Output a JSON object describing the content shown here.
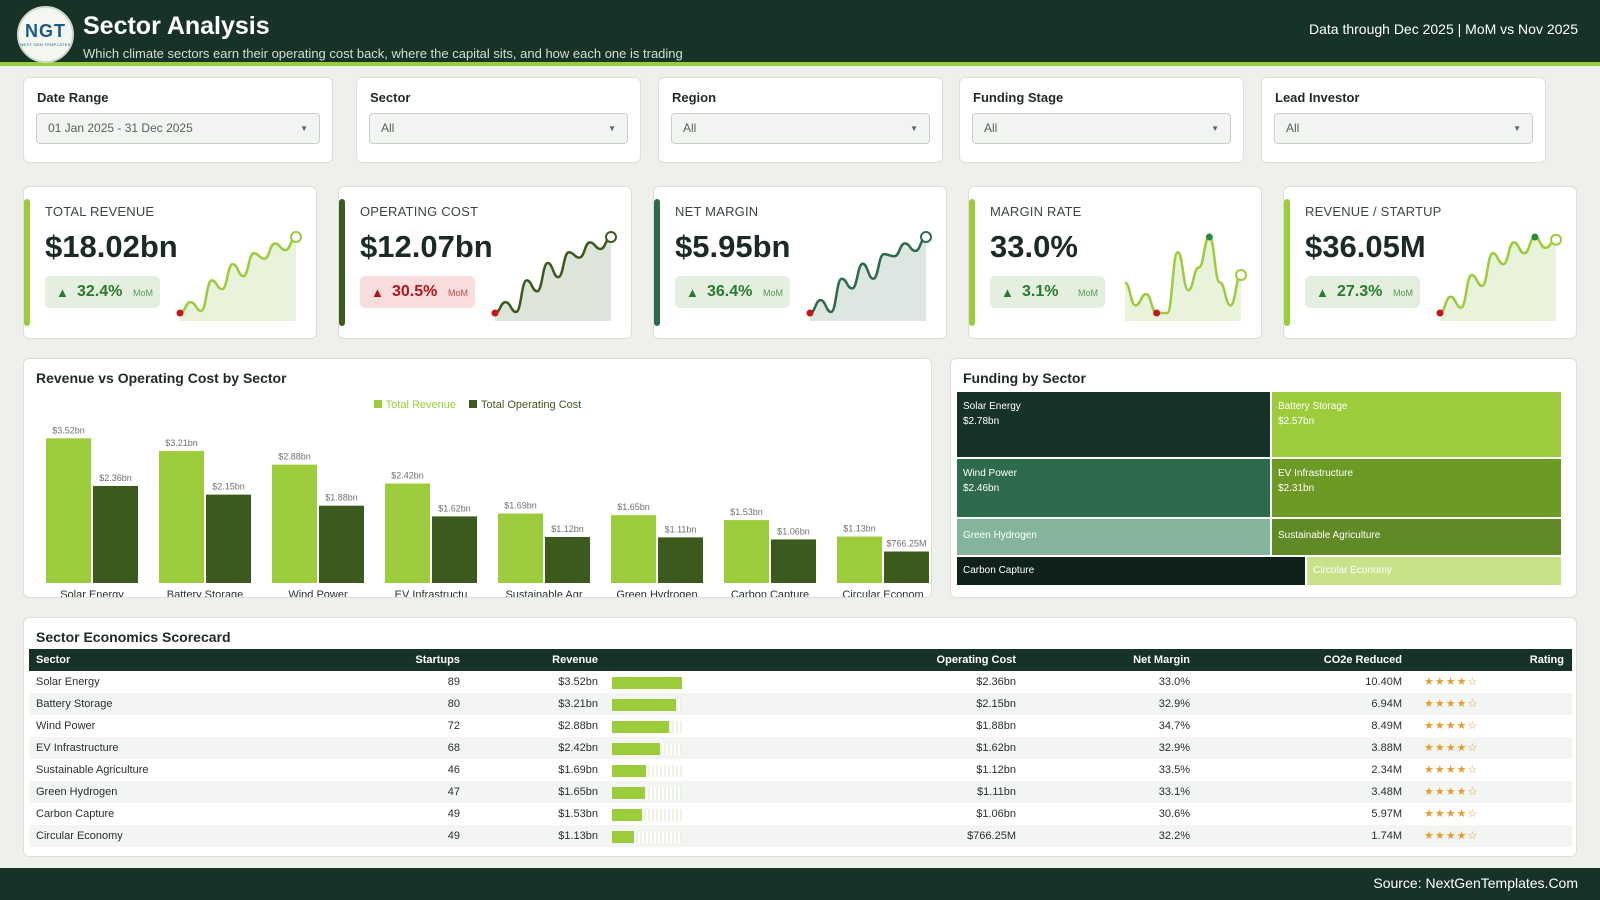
{
  "header": {
    "logo_mark": "NGT",
    "logo_sub": "NEXT GEN TEMPLATES",
    "title": "Sector Analysis",
    "subtitle": "Which climate sectors earn their operating cost back, where the capital sits, and how each one is trading",
    "data_through": "Data through Dec 2025 | MoM vs Nov 2025"
  },
  "filters": [
    {
      "label": "Date Range",
      "value": "01 Jan 2025 - 31 Dec 2025"
    },
    {
      "label": "Sector",
      "value": "All"
    },
    {
      "label": "Region",
      "value": "All"
    },
    {
      "label": "Funding Stage",
      "value": "All"
    },
    {
      "label": "Lead Investor",
      "value": "All"
    }
  ],
  "kpis": [
    {
      "label": "TOTAL REVENUE",
      "value": "$18.02bn",
      "change": "32.4%",
      "direction": "up",
      "status": "good",
      "mom": "MoM",
      "accent": "#9ccb3b",
      "spark_line": "#9ccb3b",
      "spark_fill": "#e9f3dc",
      "spark": [
        2,
        3,
        2.2,
        5,
        4.2,
        6.5,
        5.4,
        7.5,
        7,
        8.4,
        7.8,
        9
      ]
    },
    {
      "label": "OPERATING COST",
      "value": "$12.07bn",
      "change": "30.5%",
      "direction": "up",
      "status": "bad",
      "mom": "MoM",
      "accent": "#3d5a1e",
      "spark_line": "#3d5a1e",
      "spark_fill": "#dde4d9",
      "spark": [
        2,
        3,
        2.1,
        5,
        4,
        6.6,
        5.3,
        7.6,
        7.1,
        8.5,
        7.9,
        9
      ]
    },
    {
      "label": "NET MARGIN",
      "value": "$5.95bn",
      "change": "36.4%",
      "direction": "up",
      "status": "good",
      "mom": "MoM",
      "accent": "#2d6b4c",
      "spark_line": "#2d6b4c",
      "spark_fill": "#dde6e1",
      "spark": [
        2,
        3.2,
        2.1,
        5.2,
        4.3,
        6.6,
        5.2,
        7.5,
        7.3,
        8.5,
        7.8,
        9.1
      ]
    },
    {
      "label": "MARGIN RATE",
      "value": "33.0%",
      "change": "3.1%",
      "direction": "up",
      "status": "good",
      "mom": "MoM",
      "accent": "#9ccb3b",
      "spark_line": "#9ccb3b",
      "spark_fill": "#e9f3dc",
      "spark": [
        32.9,
        32.6,
        32.75,
        32.5,
        32.5,
        33.3,
        32.8,
        33.1,
        33.5,
        32.9,
        32.6,
        33.0
      ]
    },
    {
      "label": "REVENUE / STARTUP",
      "value": "$36.05M",
      "change": "27.3%",
      "direction": "up",
      "status": "good",
      "mom": "MoM",
      "accent": "#9ccb3b",
      "spark_line": "#9ccb3b",
      "spark_fill": "#e9f3dc",
      "spark": [
        20,
        23,
        21,
        27,
        25,
        31,
        29,
        33,
        31,
        34,
        32,
        33.5
      ]
    }
  ],
  "bar_chart": {
    "title": "Revenue vs Operating Cost by Sector",
    "legend": [
      "Total Revenue",
      "Total Operating Cost"
    ],
    "colors": [
      "#9ccb3b",
      "#3d5a1e"
    ]
  },
  "chart_data": {
    "type": "bar",
    "title": "Revenue vs Operating Cost by Sector",
    "categories": [
      "Solar Energy",
      "Battery Storage",
      "Wind Power",
      "EV Infrastructu",
      "Sustainable Agr",
      "Green Hydrogen",
      "Carbon Capture",
      "Circular Econom"
    ],
    "series": [
      {
        "name": "Total Revenue",
        "values": [
          3.52,
          3.21,
          2.88,
          2.42,
          1.69,
          1.65,
          1.53,
          1.13
        ],
        "labels": [
          "$3.52bn",
          "$3.21bn",
          "$2.88bn",
          "$2.42bn",
          "$1.69bn",
          "$1.65bn",
          "$1.53bn",
          "$1.13bn"
        ]
      },
      {
        "name": "Total Operating Cost",
        "values": [
          2.36,
          2.15,
          1.88,
          1.62,
          1.12,
          1.11,
          1.06,
          0.766
        ],
        "labels": [
          "$2.36bn",
          "$2.15bn",
          "$1.88bn",
          "$1.62bn",
          "$1.12bn",
          "$1.11bn",
          "$1.06bn",
          "$766.25M"
        ]
      }
    ],
    "unit": "bn",
    "ylim": [
      0,
      3.6
    ],
    "legend_position": "top-center",
    "grid": false
  },
  "treemap": {
    "title": "Funding by Sector",
    "items": [
      {
        "name": "Solar Energy",
        "value": "$2.78bn",
        "color": "#173328"
      },
      {
        "name": "Battery Storage",
        "value": "$2.57bn",
        "color": "#9ccb3b"
      },
      {
        "name": "Wind Power",
        "value": "$2.46bn",
        "color": "#2d6b4c"
      },
      {
        "name": "EV Infrastructure",
        "value": "$2.31bn",
        "color": "#6c9a24"
      },
      {
        "name": "Green Hydrogen",
        "value": "",
        "color": "#84b59a"
      },
      {
        "name": "Sustainable Agriculture",
        "value": "",
        "color": "#5f8a25"
      },
      {
        "name": "Carbon Capture",
        "value": "",
        "color": "#0e2219"
      },
      {
        "name": "Circular Economy",
        "value": "",
        "color": "#c8e28a"
      }
    ]
  },
  "scorecard": {
    "title": "Sector Economics Scorecard",
    "columns": [
      "Sector",
      "Startups",
      "Revenue",
      "Operating Cost",
      "Net Margin",
      "CO2e Reduced",
      "Rating"
    ],
    "rows": [
      {
        "sector": "Solar Energy",
        "startups": "89",
        "revenue": "$3.52bn",
        "revenue_share": 1.0,
        "cost": "$2.36bn",
        "margin": "33.0%",
        "co2": "10.40M",
        "rating": 4,
        "stars": "★★★★☆"
      },
      {
        "sector": "Battery Storage",
        "startups": "80",
        "revenue": "$3.21bn",
        "revenue_share": 0.91,
        "cost": "$2.15bn",
        "margin": "32.9%",
        "co2": "6.94M",
        "rating": 4,
        "stars": "★★★★☆"
      },
      {
        "sector": "Wind Power",
        "startups": "72",
        "revenue": "$2.88bn",
        "revenue_share": 0.82,
        "cost": "$1.88bn",
        "margin": "34.7%",
        "co2": "8.49M",
        "rating": 4,
        "stars": "★★★★☆"
      },
      {
        "sector": "EV Infrastructure",
        "startups": "68",
        "revenue": "$2.42bn",
        "revenue_share": 0.69,
        "cost": "$1.62bn",
        "margin": "32.9%",
        "co2": "3.88M",
        "rating": 4,
        "stars": "★★★★☆"
      },
      {
        "sector": "Sustainable Agriculture",
        "startups": "46",
        "revenue": "$1.69bn",
        "revenue_share": 0.48,
        "cost": "$1.12bn",
        "margin": "33.5%",
        "co2": "2.34M",
        "rating": 4,
        "stars": "★★★★☆"
      },
      {
        "sector": "Green Hydrogen",
        "startups": "47",
        "revenue": "$1.65bn",
        "revenue_share": 0.47,
        "cost": "$1.11bn",
        "margin": "33.1%",
        "co2": "3.48M",
        "rating": 4,
        "stars": "★★★★☆"
      },
      {
        "sector": "Carbon Capture",
        "startups": "49",
        "revenue": "$1.53bn",
        "revenue_share": 0.43,
        "cost": "$1.06bn",
        "margin": "30.6%",
        "co2": "5.97M",
        "rating": 4,
        "stars": "★★★★☆"
      },
      {
        "sector": "Circular Economy",
        "startups": "49",
        "revenue": "$1.13bn",
        "revenue_share": 0.32,
        "cost": "$766.25M",
        "margin": "32.2%",
        "co2": "1.74M",
        "rating": 4,
        "stars": "★★★★☆"
      }
    ]
  },
  "footer": {
    "source": "Source: NextGenTemplates.Com"
  }
}
